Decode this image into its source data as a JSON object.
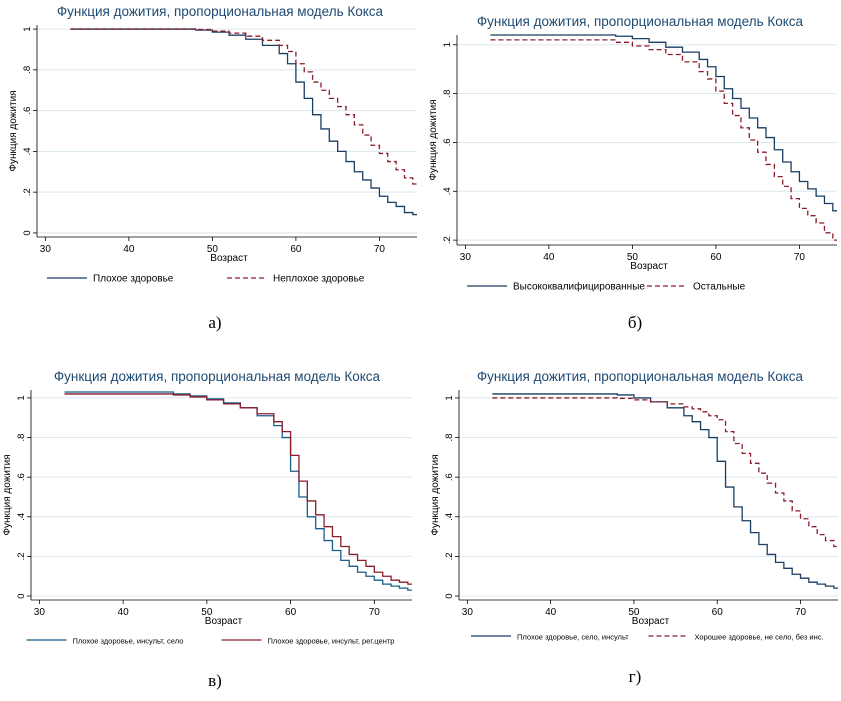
{
  "chart_data": [
    {
      "type": "line",
      "title": "Функция дожития, пропорциональная модель Кокса",
      "xlabel": "Возраст",
      "ylabel": "Функция дожития",
      "x_ticks": [
        "30",
        "40",
        "50",
        "60",
        "70"
      ],
      "y_ticks": [
        "0",
        ".2",
        ".4",
        ".6",
        ".8",
        "1"
      ],
      "xlim": [
        29,
        74.5
      ],
      "ylim": [
        -0.02,
        1.02
      ],
      "grid": true,
      "legend_position": "bottom",
      "caption": "а)",
      "series": [
        {
          "name": "Плохое здоровье",
          "color": "#1a3e64",
          "dash": "solid",
          "x": [
            33,
            45,
            48,
            50,
            52,
            54,
            56,
            58,
            59,
            60,
            61,
            62,
            63,
            64,
            65,
            66,
            67,
            68,
            69,
            70,
            71,
            72,
            73,
            74
          ],
          "y": [
            1.0,
            1.0,
            0.995,
            0.985,
            0.97,
            0.95,
            0.92,
            0.88,
            0.83,
            0.74,
            0.66,
            0.58,
            0.51,
            0.45,
            0.4,
            0.35,
            0.3,
            0.26,
            0.22,
            0.18,
            0.15,
            0.13,
            0.1,
            0.09
          ]
        },
        {
          "name": "Неплохое здоровье",
          "color": "#8b1c2c",
          "dash": "dashed",
          "x": [
            33,
            45,
            48,
            50,
            52,
            54,
            56,
            58,
            59,
            60,
            61,
            62,
            63,
            64,
            65,
            66,
            67,
            68,
            69,
            70,
            71,
            72,
            73,
            74
          ],
          "y": [
            1.0,
            1.0,
            0.998,
            0.99,
            0.98,
            0.965,
            0.945,
            0.92,
            0.89,
            0.83,
            0.79,
            0.74,
            0.7,
            0.66,
            0.62,
            0.58,
            0.53,
            0.48,
            0.43,
            0.39,
            0.35,
            0.31,
            0.27,
            0.24
          ]
        }
      ]
    },
    {
      "type": "line",
      "title": "Функция дожития, пропорциональная модель Кокса",
      "xlabel": "Возраст",
      "ylabel": "Функция дожития",
      "x_ticks": [
        "30",
        "40",
        "50",
        "60",
        "70"
      ],
      "y_ticks": [
        ".2",
        ".4",
        ".6",
        ".8",
        "1"
      ],
      "xlim": [
        29,
        74.5
      ],
      "ylim": [
        0.18,
        1.04
      ],
      "grid": true,
      "legend_position": "bottom",
      "caption": "б)",
      "series": [
        {
          "name": "Высококвалифицированные",
          "color": "#1a3e64",
          "dash": "solid",
          "x": [
            33,
            46,
            48,
            50,
            52,
            54,
            56,
            58,
            59,
            60,
            61,
            62,
            63,
            64,
            65,
            66,
            67,
            68,
            69,
            70,
            71,
            72,
            73,
            74
          ],
          "y": [
            1.04,
            1.04,
            1.035,
            1.025,
            1.01,
            0.99,
            0.97,
            0.94,
            0.91,
            0.87,
            0.82,
            0.78,
            0.74,
            0.7,
            0.66,
            0.62,
            0.57,
            0.52,
            0.48,
            0.44,
            0.41,
            0.38,
            0.35,
            0.32
          ]
        },
        {
          "name": "Остальные",
          "color": "#8b1c2c",
          "dash": "dashed",
          "x": [
            33,
            46,
            48,
            50,
            52,
            54,
            56,
            58,
            59,
            60,
            61,
            62,
            63,
            64,
            65,
            66,
            67,
            68,
            69,
            70,
            71,
            72,
            73,
            74
          ],
          "y": [
            1.02,
            1.02,
            1.01,
            0.995,
            0.98,
            0.96,
            0.93,
            0.89,
            0.86,
            0.81,
            0.76,
            0.71,
            0.66,
            0.61,
            0.56,
            0.51,
            0.46,
            0.42,
            0.37,
            0.33,
            0.3,
            0.27,
            0.23,
            0.2
          ]
        }
      ]
    },
    {
      "type": "line",
      "title": "Функция дожития, пропорциональная модель Кокса",
      "xlabel": "Возраст",
      "ylabel": "Функция дожития",
      "x_ticks": [
        "30",
        "40",
        "50",
        "60",
        "70"
      ],
      "y_ticks": [
        "0",
        ".2",
        ".4",
        ".6",
        ".8",
        "1"
      ],
      "xlim": [
        29,
        74.5
      ],
      "ylim": [
        -0.02,
        1.04
      ],
      "grid": true,
      "legend_position": "bottom",
      "caption": "в)",
      "series": [
        {
          "name": "Плохое здоровье, инсульт, село",
          "color": "#1a5f8c",
          "dash": "solid",
          "x": [
            33,
            44,
            46,
            48,
            50,
            52,
            54,
            56,
            58,
            59,
            60,
            61,
            62,
            63,
            64,
            65,
            66,
            67,
            68,
            69,
            70,
            71,
            72,
            73,
            74
          ],
          "y": [
            1.03,
            1.03,
            1.02,
            1.01,
            0.995,
            0.975,
            0.95,
            0.91,
            0.86,
            0.8,
            0.63,
            0.5,
            0.4,
            0.34,
            0.28,
            0.23,
            0.18,
            0.15,
            0.12,
            0.1,
            0.08,
            0.06,
            0.05,
            0.04,
            0.03
          ]
        },
        {
          "name": "Плохое здоровье, инсульт, рег.центр",
          "color": "#8b1c2c",
          "dash": "solid",
          "x": [
            33,
            44,
            46,
            48,
            50,
            52,
            54,
            56,
            58,
            59,
            60,
            61,
            62,
            63,
            64,
            65,
            66,
            67,
            68,
            69,
            70,
            71,
            72,
            73,
            74
          ],
          "y": [
            1.02,
            1.02,
            1.015,
            1.005,
            0.99,
            0.97,
            0.95,
            0.92,
            0.88,
            0.83,
            0.71,
            0.58,
            0.48,
            0.41,
            0.35,
            0.3,
            0.25,
            0.21,
            0.18,
            0.15,
            0.12,
            0.1,
            0.08,
            0.07,
            0.06
          ]
        }
      ]
    },
    {
      "type": "line",
      "title": "Функция дожития, пропорциональная модель Кокса",
      "xlabel": "Возраст",
      "ylabel": "Функция дожития",
      "x_ticks": [
        "30",
        "40",
        "50",
        "60",
        "70"
      ],
      "y_ticks": [
        "0",
        ".2",
        ".4",
        ".6",
        ".8",
        "1"
      ],
      "xlim": [
        29,
        74.5
      ],
      "ylim": [
        -0.02,
        1.04
      ],
      "grid": true,
      "legend_position": "bottom",
      "caption": "г)",
      "series": [
        {
          "name": "Плохое здоровье, село, инсульт",
          "color": "#1a3e64",
          "dash": "solid",
          "x": [
            33,
            46,
            48,
            50,
            52,
            54,
            56,
            57,
            58,
            59,
            60,
            61,
            62,
            63,
            64,
            65,
            66,
            67,
            68,
            69,
            70,
            71,
            72,
            73,
            74
          ],
          "y": [
            1.02,
            1.02,
            1.015,
            1.0,
            0.98,
            0.95,
            0.91,
            0.88,
            0.84,
            0.8,
            0.68,
            0.55,
            0.45,
            0.38,
            0.32,
            0.26,
            0.21,
            0.17,
            0.14,
            0.11,
            0.09,
            0.07,
            0.06,
            0.05,
            0.04
          ]
        },
        {
          "name": "Хорошее здоровье, не село, без инс.",
          "color": "#8b1c2c",
          "dash": "dashed",
          "x": [
            33,
            46,
            48,
            50,
            52,
            54,
            56,
            57,
            58,
            59,
            60,
            61,
            62,
            63,
            64,
            65,
            66,
            67,
            68,
            69,
            70,
            71,
            72,
            73,
            74
          ],
          "y": [
            1.0,
            1.0,
            0.998,
            0.99,
            0.98,
            0.97,
            0.955,
            0.945,
            0.93,
            0.91,
            0.89,
            0.83,
            0.77,
            0.72,
            0.67,
            0.62,
            0.57,
            0.52,
            0.48,
            0.43,
            0.39,
            0.35,
            0.31,
            0.28,
            0.25
          ]
        }
      ]
    }
  ]
}
